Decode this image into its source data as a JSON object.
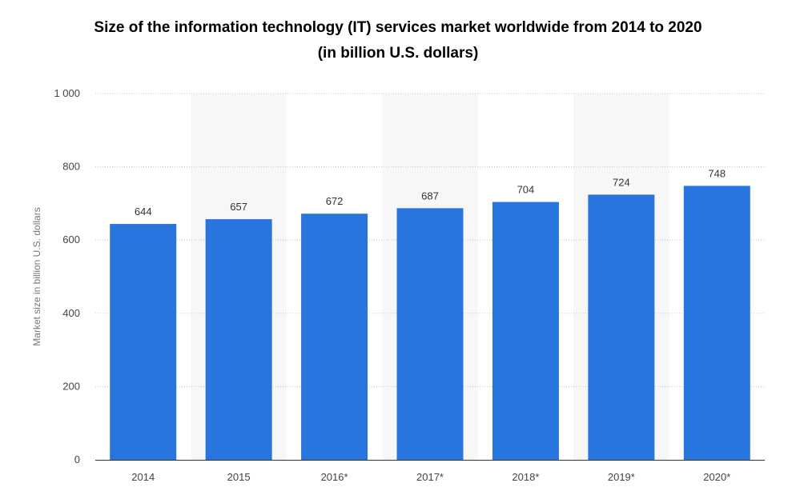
{
  "chart_data": {
    "type": "bar",
    "title_line1": "Size of the information technology (IT) services market worldwide from 2014 to 2020",
    "title_line2": "(in billion U.S. dollars)",
    "xlabel": "",
    "ylabel": "Market size in billion U.S. dollars",
    "categories": [
      "2014",
      "2015",
      "2016*",
      "2017*",
      "2018*",
      "2019*",
      "2020*"
    ],
    "values": [
      644,
      657,
      672,
      687,
      704,
      724,
      748
    ],
    "value_labels": [
      "644",
      "657",
      "672",
      "687",
      "704",
      "724",
      "748"
    ],
    "ylim": [
      0,
      1000
    ],
    "yticks": [
      0,
      200,
      400,
      600,
      800,
      1000
    ],
    "ytick_labels": [
      "0",
      "200",
      "400",
      "600",
      "800",
      "1 000"
    ],
    "grid": true,
    "bar_color": "#2876dd",
    "band_color": "#f7f7f7"
  }
}
